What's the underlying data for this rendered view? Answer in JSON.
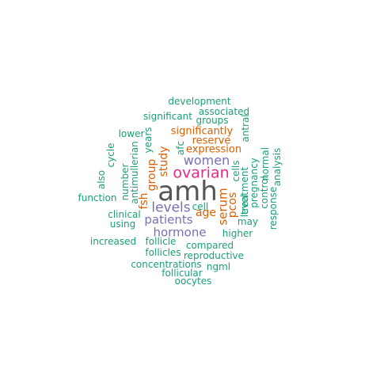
{
  "palette": {
    "teal": "#1b9e77",
    "orange": "#d95f02",
    "purple": "#7570b3",
    "magenta": "#e7298a",
    "gray": "#555555"
  },
  "words": [
    {
      "text": "amh",
      "color": "gray"
    },
    {
      "text": "ovarian",
      "color": "magenta"
    },
    {
      "text": "levels",
      "color": "purple"
    },
    {
      "text": "women",
      "color": "purple"
    },
    {
      "text": "patients",
      "color": "purple"
    },
    {
      "text": "hormone",
      "color": "purple"
    },
    {
      "text": "study",
      "color": "orange"
    },
    {
      "text": "group",
      "color": "orange"
    },
    {
      "text": "serum",
      "color": "orange"
    },
    {
      "text": "pcos",
      "color": "orange"
    },
    {
      "text": "fsh",
      "color": "orange"
    },
    {
      "text": "age",
      "color": "orange"
    },
    {
      "text": "expression",
      "color": "orange"
    },
    {
      "text": "reserve",
      "color": "orange"
    },
    {
      "text": "significantly",
      "color": "orange"
    },
    {
      "text": "development",
      "color": "teal"
    },
    {
      "text": "associated",
      "color": "teal"
    },
    {
      "text": "significant",
      "color": "teal"
    },
    {
      "text": "groups",
      "color": "teal"
    },
    {
      "text": "lower",
      "color": "teal"
    },
    {
      "text": "years",
      "color": "teal"
    },
    {
      "text": "afc",
      "color": "teal"
    },
    {
      "text": "cells",
      "color": "teal"
    },
    {
      "text": "antral",
      "color": "teal"
    },
    {
      "text": "cycle",
      "color": "teal"
    },
    {
      "text": "antimullerian",
      "color": "teal"
    },
    {
      "text": "also",
      "color": "teal"
    },
    {
      "text": "number",
      "color": "teal"
    },
    {
      "text": "function",
      "color": "teal"
    },
    {
      "text": "cell",
      "color": "teal"
    },
    {
      "text": "treatment",
      "color": "teal"
    },
    {
      "text": "level",
      "color": "teal"
    },
    {
      "text": "pregnancy",
      "color": "teal"
    },
    {
      "text": "control",
      "color": "teal"
    },
    {
      "text": "normal",
      "color": "teal"
    },
    {
      "text": "analysis",
      "color": "teal"
    },
    {
      "text": "response",
      "color": "teal"
    },
    {
      "text": "clinical",
      "color": "teal"
    },
    {
      "text": "using",
      "color": "teal"
    },
    {
      "text": "may",
      "color": "teal"
    },
    {
      "text": "higher",
      "color": "teal"
    },
    {
      "text": "increased",
      "color": "teal"
    },
    {
      "text": "follicle",
      "color": "teal"
    },
    {
      "text": "compared",
      "color": "teal"
    },
    {
      "text": "follicles",
      "color": "teal"
    },
    {
      "text": "reproductive",
      "color": "teal"
    },
    {
      "text": "concentrations",
      "color": "teal"
    },
    {
      "text": "ngml",
      "color": "teal"
    },
    {
      "text": "follicular",
      "color": "teal"
    },
    {
      "text": "oocytes",
      "color": "teal"
    }
  ]
}
